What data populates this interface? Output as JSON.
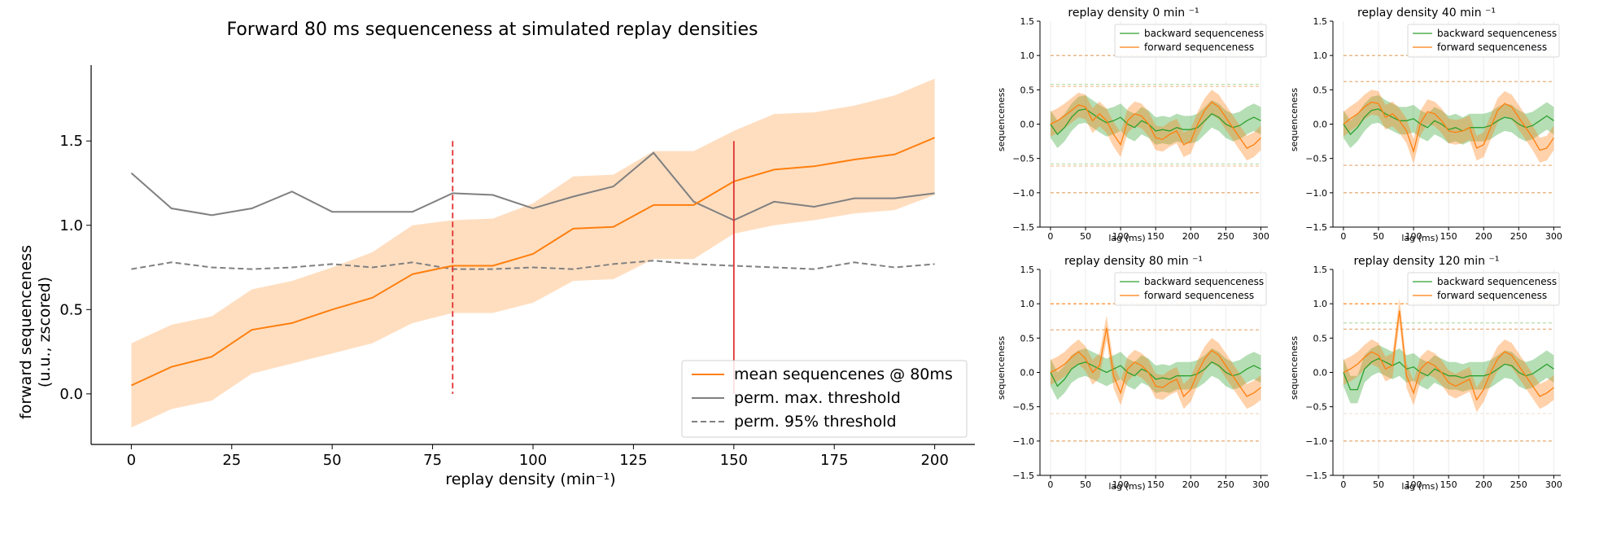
{
  "chart_data": [
    {
      "type": "line",
      "title": "Forward 80 ms sequenceness at simulated replay densities",
      "xlabel": "replay density (min⁻¹)",
      "ylabel_line1": "forward sequenceness",
      "ylabel_line2": "(u.u., zscored)",
      "xlim": [
        -10,
        210
      ],
      "ylim": [
        -0.3,
        1.95
      ],
      "xticks": [
        0,
        25,
        50,
        75,
        100,
        125,
        150,
        175,
        200
      ],
      "yticks": [
        0.0,
        0.5,
        1.0,
        1.5
      ],
      "ytick_labels": [
        "0.0",
        "0.5",
        "1.0",
        "1.5"
      ],
      "x": [
        0,
        10,
        20,
        30,
        40,
        50,
        60,
        70,
        80,
        90,
        100,
        110,
        120,
        130,
        140,
        150,
        160,
        170,
        180,
        190,
        200
      ],
      "series": [
        {
          "name": "mean sequencenes @ 80ms",
          "style": "solid",
          "color": "#ff7f0e",
          "values": [
            0.05,
            0.16,
            0.22,
            0.38,
            0.42,
            0.5,
            0.57,
            0.71,
            0.76,
            0.76,
            0.83,
            0.98,
            0.99,
            1.12,
            1.12,
            1.26,
            1.33,
            1.35,
            1.39,
            1.42,
            1.52
          ],
          "band_upper": [
            0.3,
            0.41,
            0.46,
            0.62,
            0.67,
            0.75,
            0.84,
            1.0,
            1.03,
            1.04,
            1.13,
            1.29,
            1.3,
            1.44,
            1.44,
            1.56,
            1.66,
            1.67,
            1.71,
            1.77,
            1.87
          ],
          "band_lower": [
            -0.2,
            -0.09,
            -0.04,
            0.12,
            0.18,
            0.24,
            0.3,
            0.42,
            0.48,
            0.48,
            0.54,
            0.67,
            0.68,
            0.8,
            0.8,
            0.95,
            1.0,
            1.03,
            1.07,
            1.09,
            1.18
          ]
        },
        {
          "name": "perm. max. threshold",
          "style": "solid",
          "color": "#808080",
          "values": [
            1.31,
            1.1,
            1.06,
            1.1,
            1.2,
            1.08,
            1.08,
            1.08,
            1.19,
            1.18,
            1.1,
            1.17,
            1.23,
            1.43,
            1.14,
            1.03,
            1.14,
            1.11,
            1.16,
            1.16,
            1.19
          ]
        },
        {
          "name": "perm. 95% threshold",
          "style": "dashed",
          "color": "#808080",
          "values": [
            0.74,
            0.78,
            0.75,
            0.74,
            0.75,
            0.77,
            0.75,
            0.78,
            0.74,
            0.74,
            0.75,
            0.74,
            0.77,
            0.79,
            0.77,
            0.76,
            0.75,
            0.74,
            0.78,
            0.75,
            0.77
          ]
        }
      ],
      "vlines": [
        {
          "x": 80,
          "y0": 0.0,
          "y1": 1.5,
          "style": "dashed",
          "color": "#e03030"
        },
        {
          "x": 150,
          "y0": 0.0,
          "y1": 1.5,
          "style": "solid",
          "color": "#e03030"
        }
      ],
      "legend_position": "lower-right"
    },
    {
      "type": "line",
      "title": "replay density 0 min ⁻¹",
      "xlabel": "lag (ms)",
      "ylabel": "sequenceness",
      "xlim": [
        -15,
        310
      ],
      "ylim": [
        -1.5,
        1.5
      ],
      "xticks": [
        0,
        50,
        100,
        150,
        200,
        250,
        300
      ],
      "yticks": [
        -1.5,
        -1.0,
        -0.5,
        0.0,
        0.5,
        1.0,
        1.5
      ],
      "ytick_labels": [
        "−1.5",
        "−1.0",
        "−0.5",
        "0.0",
        "0.5",
        "1.0",
        "1.5"
      ],
      "x": [
        0,
        10,
        20,
        30,
        40,
        50,
        60,
        70,
        80,
        90,
        100,
        110,
        120,
        130,
        140,
        150,
        160,
        170,
        180,
        190,
        200,
        210,
        220,
        230,
        240,
        250,
        260,
        270,
        280,
        290,
        300
      ],
      "series": [
        {
          "name": "backward sequenceness",
          "color": "#2ca02c",
          "values": [
            0.0,
            -0.15,
            -0.05,
            0.1,
            0.2,
            0.22,
            0.15,
            0.08,
            0.02,
            0.05,
            0.1,
            0.0,
            -0.05,
            0.05,
            0.0,
            -0.1,
            -0.08,
            -0.1,
            -0.05,
            -0.08,
            -0.08,
            -0.05,
            0.05,
            0.15,
            0.1,
            0.0,
            -0.05,
            -0.02,
            0.05,
            0.1,
            0.05
          ],
          "band": 0.2
        },
        {
          "name": "forward sequenceness",
          "color": "#ff7f0e",
          "values": [
            0.0,
            0.05,
            0.12,
            0.2,
            0.28,
            0.25,
            0.05,
            0.15,
            0.05,
            -0.15,
            -0.3,
            0.05,
            0.15,
            0.12,
            0.0,
            -0.2,
            -0.22,
            -0.15,
            -0.1,
            -0.3,
            -0.25,
            0.0,
            0.2,
            0.32,
            0.25,
            0.1,
            -0.05,
            -0.2,
            -0.35,
            -0.3,
            -0.2
          ],
          "band": 0.18
        }
      ],
      "hlines": [
        {
          "y": 1.0,
          "color": "#e0a060",
          "style": "dashed"
        },
        {
          "y": -1.0,
          "color": "#e0a060",
          "style": "dashed"
        },
        {
          "y": 0.58,
          "color": "#b8dca8",
          "style": "dashed"
        },
        {
          "y": 0.55,
          "color": "#f0c090",
          "style": "dashed"
        },
        {
          "y": -0.58,
          "color": "#b8dca8",
          "style": "dashed"
        },
        {
          "y": -0.61,
          "color": "#f0c090",
          "style": "dashed"
        }
      ]
    },
    {
      "type": "line",
      "title": "replay density 40 min ⁻¹",
      "xlabel": "lag (ms)",
      "ylabel": "sequenceness",
      "xlim": [
        -15,
        310
      ],
      "ylim": [
        -1.5,
        1.5
      ],
      "xticks": [
        0,
        50,
        100,
        150,
        200,
        250,
        300
      ],
      "yticks": [
        -1.5,
        -1.0,
        -0.5,
        0.0,
        0.5,
        1.0,
        1.5
      ],
      "ytick_labels": [
        "−1.5",
        "−1.0",
        "−0.5",
        "0.0",
        "0.5",
        "1.0",
        "1.5"
      ],
      "x": [
        0,
        10,
        20,
        30,
        40,
        50,
        60,
        70,
        80,
        90,
        100,
        110,
        120,
        130,
        140,
        150,
        160,
        170,
        180,
        190,
        200,
        210,
        220,
        230,
        240,
        250,
        260,
        270,
        280,
        290,
        300
      ],
      "series": [
        {
          "name": "backward sequenceness",
          "color": "#2ca02c",
          "values": [
            0.0,
            -0.15,
            -0.05,
            0.1,
            0.2,
            0.22,
            0.15,
            0.1,
            0.05,
            0.05,
            0.08,
            0.0,
            -0.05,
            0.05,
            0.0,
            -0.08,
            -0.05,
            -0.1,
            -0.05,
            -0.05,
            -0.05,
            -0.02,
            0.05,
            0.1,
            0.08,
            0.0,
            -0.05,
            -0.02,
            0.05,
            0.12,
            0.05
          ],
          "band": 0.2
        },
        {
          "name": "forward sequenceness",
          "color": "#ff7f0e",
          "values": [
            0.0,
            0.08,
            0.15,
            0.25,
            0.32,
            0.3,
            0.1,
            0.15,
            0.05,
            -0.1,
            -0.4,
            0.02,
            0.18,
            0.15,
            0.05,
            -0.1,
            -0.12,
            -0.1,
            -0.05,
            -0.35,
            -0.3,
            -0.05,
            0.2,
            0.3,
            0.25,
            0.1,
            -0.05,
            -0.2,
            -0.38,
            -0.35,
            -0.2
          ],
          "band": 0.18
        }
      ],
      "hlines": [
        {
          "y": 1.0,
          "color": "#e0a060",
          "style": "dashed"
        },
        {
          "y": -1.0,
          "color": "#e0a060",
          "style": "dashed"
        },
        {
          "y": 0.62,
          "color": "#e8b080",
          "style": "dashed"
        },
        {
          "y": -0.6,
          "color": "#e8b080",
          "style": "dashed"
        }
      ]
    },
    {
      "type": "line",
      "title": "replay density 80 min ⁻¹",
      "xlabel": "lag (ms)",
      "ylabel": "sequenceness",
      "xlim": [
        -15,
        310
      ],
      "ylim": [
        -1.5,
        1.5
      ],
      "xticks": [
        0,
        50,
        100,
        150,
        200,
        250,
        300
      ],
      "yticks": [
        -1.5,
        -1.0,
        -0.5,
        0.0,
        0.5,
        1.0,
        1.5
      ],
      "ytick_labels": [
        "−1.5",
        "−1.0",
        "−0.5",
        "0.0",
        "0.5",
        "1.0",
        "1.5"
      ],
      "x": [
        0,
        10,
        20,
        30,
        40,
        50,
        60,
        70,
        80,
        90,
        100,
        110,
        120,
        130,
        140,
        150,
        160,
        170,
        180,
        190,
        200,
        210,
        220,
        230,
        240,
        250,
        260,
        270,
        280,
        290,
        300
      ],
      "series": [
        {
          "name": "backward sequenceness",
          "color": "#2ca02c",
          "values": [
            0.0,
            -0.2,
            -0.1,
            0.05,
            0.12,
            0.15,
            0.1,
            0.05,
            0.0,
            0.05,
            0.1,
            0.0,
            -0.05,
            0.05,
            0.0,
            -0.1,
            -0.08,
            -0.1,
            -0.05,
            -0.05,
            -0.05,
            -0.02,
            0.05,
            0.15,
            0.1,
            0.0,
            -0.05,
            -0.02,
            0.05,
            0.1,
            0.05
          ],
          "band": 0.2
        },
        {
          "name": "forward sequenceness",
          "color": "#ff7f0e",
          "values": [
            0.0,
            0.05,
            0.12,
            0.22,
            0.3,
            0.2,
            0.0,
            0.1,
            0.65,
            -0.05,
            -0.3,
            0.05,
            0.15,
            0.1,
            0.0,
            -0.2,
            -0.22,
            -0.15,
            -0.1,
            -0.35,
            -0.25,
            0.0,
            0.2,
            0.32,
            0.25,
            0.1,
            -0.05,
            -0.2,
            -0.35,
            -0.3,
            -0.22
          ],
          "band": 0.18
        }
      ],
      "hlines": [
        {
          "y": 1.0,
          "color": "#ff7f0e",
          "style": "dashed"
        },
        {
          "y": -1.0,
          "color": "#e0a060",
          "style": "dashed"
        },
        {
          "y": 0.62,
          "color": "#e8b080",
          "style": "dashed"
        },
        {
          "y": -0.6,
          "color": "#f0d8c0",
          "style": "dashed"
        }
      ]
    },
    {
      "type": "line",
      "title": "replay density 120 min ⁻¹",
      "xlabel": "lag (ms)",
      "ylabel": "sequenceness",
      "xlim": [
        -15,
        310
      ],
      "ylim": [
        -1.5,
        1.5
      ],
      "xticks": [
        0,
        50,
        100,
        150,
        200,
        250,
        300
      ],
      "yticks": [
        -1.5,
        -1.0,
        -0.5,
        0.0,
        0.5,
        1.0,
        1.5
      ],
      "ytick_labels": [
        "−1.5",
        "−1.0",
        "−0.5",
        "0.0",
        "0.5",
        "1.0",
        "1.5"
      ],
      "x": [
        0,
        10,
        20,
        30,
        40,
        50,
        60,
        70,
        80,
        90,
        100,
        110,
        120,
        130,
        140,
        150,
        160,
        170,
        180,
        190,
        200,
        210,
        220,
        230,
        240,
        250,
        260,
        270,
        280,
        290,
        300
      ],
      "series": [
        {
          "name": "backward sequenceness",
          "color": "#2ca02c",
          "values": [
            0.0,
            -0.25,
            -0.25,
            0.05,
            0.15,
            0.2,
            0.15,
            0.1,
            0.15,
            0.05,
            0.08,
            0.0,
            -0.05,
            0.05,
            0.0,
            -0.05,
            -0.05,
            -0.08,
            -0.05,
            -0.05,
            -0.05,
            -0.02,
            0.05,
            0.12,
            0.1,
            0.0,
            -0.05,
            -0.02,
            0.05,
            0.12,
            0.05
          ],
          "band": 0.2
        },
        {
          "name": "forward sequenceness",
          "color": "#ff7f0e",
          "values": [
            0.0,
            0.05,
            0.12,
            0.22,
            0.3,
            0.25,
            0.05,
            0.1,
            0.9,
            -0.05,
            -0.3,
            0.05,
            0.15,
            0.1,
            0.0,
            -0.15,
            -0.2,
            -0.15,
            -0.1,
            -0.4,
            -0.25,
            0.0,
            0.2,
            0.3,
            0.25,
            0.1,
            -0.05,
            -0.2,
            -0.35,
            -0.3,
            -0.22
          ],
          "band": 0.18
        }
      ],
      "hlines": [
        {
          "y": 1.0,
          "color": "#ff7f0e",
          "style": "dashed"
        },
        {
          "y": -1.0,
          "color": "#e0a060",
          "style": "dashed"
        },
        {
          "y": 0.72,
          "color": "#b8dca8",
          "style": "dashed"
        },
        {
          "y": 0.63,
          "color": "#e8b080",
          "style": "dashed"
        },
        {
          "y": -0.6,
          "color": "#f0e4d8",
          "style": "dashed"
        }
      ]
    }
  ]
}
